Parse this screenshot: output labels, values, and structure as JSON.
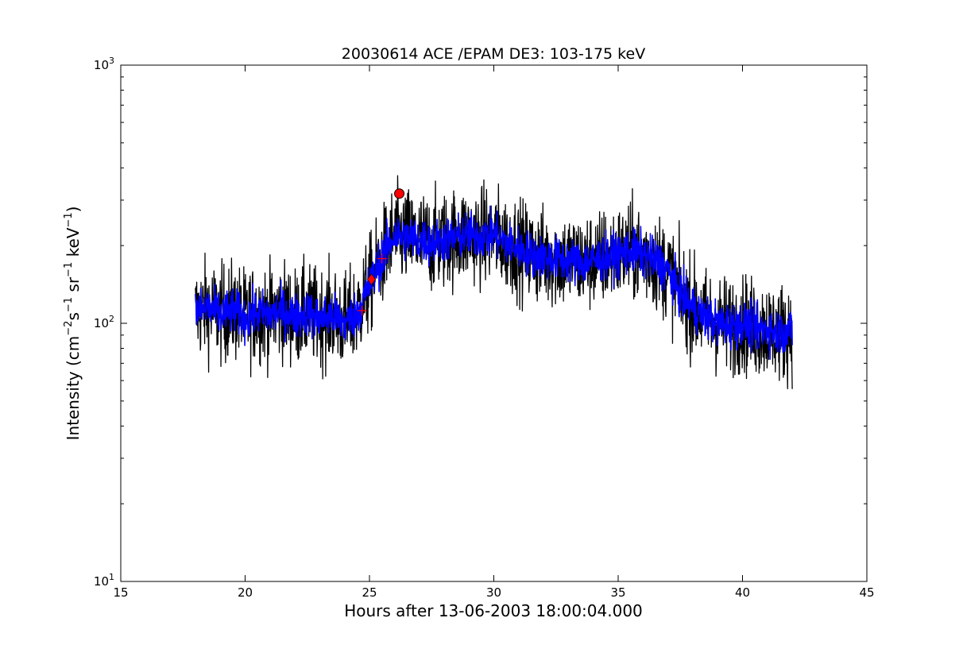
{
  "chart_data": {
    "type": "line",
    "title": "20030614 ACE /EPAM DE3: 103-175 keV",
    "xlabel": "Hours after 13-06-2003 18:00:04.000",
    "ylabel_parts": {
      "prefix": "Intensity (cm",
      "exp1": "−2",
      "s": "s",
      "exp2": "−1",
      "sr": " sr",
      "exp3": "−1",
      "kev": " keV",
      "exp4": "−1",
      "suffix": ")"
    },
    "xlim": [
      15,
      45
    ],
    "ylim": [
      10,
      1000
    ],
    "yscale": "log",
    "x_ticks": [
      15,
      20,
      25,
      30,
      35,
      40,
      45
    ],
    "x_tick_labels": [
      "15",
      "20",
      "25",
      "30",
      "35",
      "40",
      "45"
    ],
    "y_ticks": [
      10,
      100,
      1000
    ],
    "y_tick_labels": [
      "10",
      "10",
      "10"
    ],
    "y_tick_exponents": [
      "1",
      "2",
      "3"
    ],
    "grid": false,
    "series": [
      {
        "color": "#000000",
        "x": [
          18.0,
          18.5,
          19.0,
          19.5,
          20.0,
          20.5,
          21.0,
          21.5,
          22.0,
          22.5,
          23.0,
          23.5,
          24.0,
          24.5,
          25.0,
          25.5,
          26.0,
          26.5,
          27.0,
          27.5,
          28.0,
          28.5,
          29.0,
          29.5,
          30.0,
          30.5,
          31.0,
          31.5,
          32.0,
          32.5,
          33.0,
          33.5,
          34.0,
          34.5,
          35.0,
          35.5,
          36.0,
          36.5,
          37.0,
          37.5,
          38.0,
          38.5,
          39.0,
          39.5,
          40.0,
          40.5,
          41.0,
          41.5,
          42.0
        ],
        "y": [
          110,
          115,
          108,
          112,
          105,
          110,
          108,
          112,
          106,
          110,
          104,
          108,
          100,
          110,
          140,
          180,
          220,
          215,
          210,
          205,
          210,
          215,
          220,
          218,
          220,
          205,
          195,
          185,
          180,
          178,
          175,
          172,
          175,
          180,
          185,
          190,
          185,
          175,
          160,
          130,
          115,
          105,
          100,
          98,
          100,
          95,
          95,
          92,
          95
        ],
        "noise": 0.22
      },
      {
        "color": "#0000ff",
        "x": [
          18.0,
          18.5,
          19.0,
          19.5,
          20.0,
          20.5,
          21.0,
          21.5,
          22.0,
          22.5,
          23.0,
          23.5,
          24.0,
          24.5,
          25.0,
          25.5,
          26.0,
          26.5,
          27.0,
          27.5,
          28.0,
          28.5,
          29.0,
          29.5,
          30.0,
          30.5,
          31.0,
          31.5,
          32.0,
          32.5,
          33.0,
          33.5,
          34.0,
          34.5,
          35.0,
          35.5,
          36.0,
          36.5,
          37.0,
          37.5,
          38.0,
          38.5,
          39.0,
          39.5,
          40.0,
          40.5,
          41.0,
          41.5,
          42.0
        ],
        "y": [
          110,
          115,
          108,
          112,
          105,
          110,
          108,
          112,
          106,
          110,
          104,
          108,
          100,
          110,
          140,
          180,
          220,
          215,
          210,
          205,
          210,
          215,
          220,
          218,
          220,
          205,
          195,
          185,
          180,
          178,
          175,
          172,
          175,
          180,
          185,
          190,
          185,
          175,
          160,
          130,
          115,
          105,
          100,
          98,
          100,
          95,
          95,
          92,
          95
        ],
        "noise": 0.1
      }
    ],
    "markers": [
      {
        "shape": "plus",
        "x": 24.7,
        "y": 112,
        "color": "#ff0000"
      },
      {
        "shape": "plus",
        "x": 25.5,
        "y": 178,
        "color": "#ff0000"
      },
      {
        "shape": "diamond",
        "x": 25.08,
        "y": 148,
        "color": "#ff0000"
      },
      {
        "shape": "circle",
        "x": 26.2,
        "y": 318,
        "color": "#ff0000"
      }
    ]
  }
}
